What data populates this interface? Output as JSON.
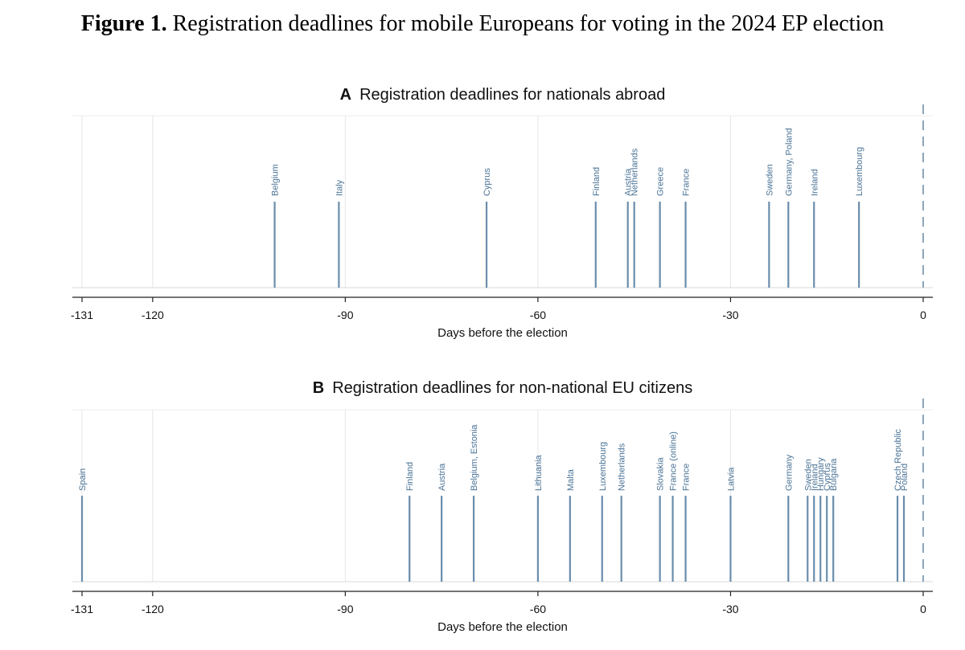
{
  "figure": {
    "label": "Figure 1.",
    "title": "Registration deadlines for mobile Europeans for voting in the 2024 EP election"
  },
  "chart_data": [
    {
      "type": "spike",
      "panel_letter": "A",
      "title": "Registration deadlines for nationals abroad",
      "xlabel": "Days before the election",
      "xlim": [
        -131,
        0
      ],
      "xticks": [
        -131,
        -120,
        -90,
        -60,
        -30,
        0
      ],
      "reference_line": 0,
      "points": [
        {
          "label": "Belgium",
          "x": -101
        },
        {
          "label": "Italy",
          "x": -91
        },
        {
          "label": "Cyprus",
          "x": -68
        },
        {
          "label": "Finland",
          "x": -51
        },
        {
          "label": "Austria",
          "x": -46
        },
        {
          "label": "Netherlands",
          "x": -45
        },
        {
          "label": "Greece",
          "x": -41
        },
        {
          "label": "France",
          "x": -37
        },
        {
          "label": "Sweden",
          "x": -24
        },
        {
          "label": "Germany, Poland",
          "x": -21
        },
        {
          "label": "Ireland",
          "x": -17
        },
        {
          "label": "Luxembourg",
          "x": -10
        }
      ]
    },
    {
      "type": "spike",
      "panel_letter": "B",
      "title": "Registration deadlines for non-national EU citizens",
      "xlabel": "Days before the election",
      "xlim": [
        -131,
        0
      ],
      "xticks": [
        -131,
        -120,
        -90,
        -60,
        -30,
        0
      ],
      "reference_line": 0,
      "points": [
        {
          "label": "Spain",
          "x": -131
        },
        {
          "label": "Finland",
          "x": -80
        },
        {
          "label": "Austria",
          "x": -75
        },
        {
          "label": "Belgium, Estonia",
          "x": -70
        },
        {
          "label": "Lithuania",
          "x": -60
        },
        {
          "label": "Malta",
          "x": -55
        },
        {
          "label": "Luxembourg",
          "x": -50
        },
        {
          "label": "Netherlands",
          "x": -47
        },
        {
          "label": "Slovakia",
          "x": -41
        },
        {
          "label": "France (online)",
          "x": -39
        },
        {
          "label": "France",
          "x": -37
        },
        {
          "label": "Latvia",
          "x": -30
        },
        {
          "label": "Germany",
          "x": -21
        },
        {
          "label": "Sweden",
          "x": -18
        },
        {
          "label": "Ireland",
          "x": -17
        },
        {
          "label": "Hungary",
          "x": -16
        },
        {
          "label": "Cyprus",
          "x": -15
        },
        {
          "label": "Bulgaria",
          "x": -14
        },
        {
          "label": "Czech Republic",
          "x": -4
        },
        {
          "label": "Poland",
          "x": -3
        }
      ]
    }
  ]
}
